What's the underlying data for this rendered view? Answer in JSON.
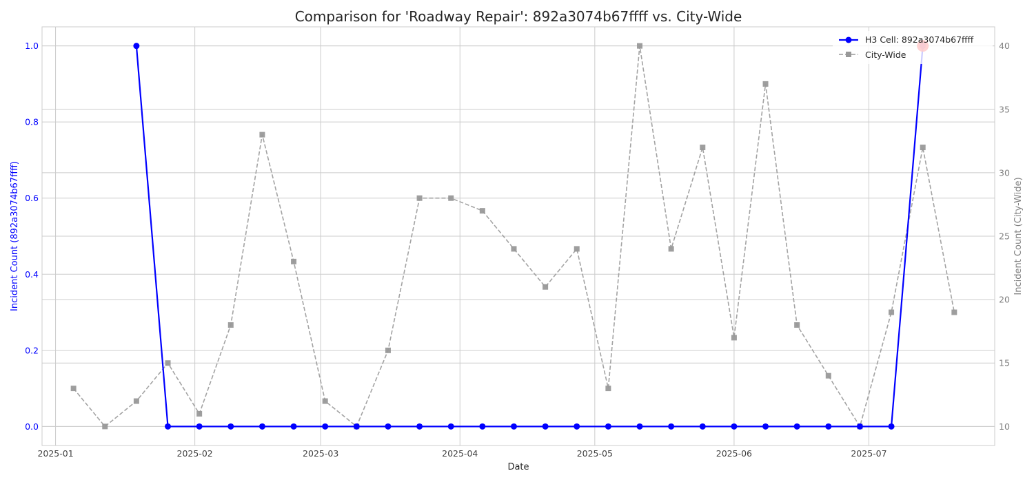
{
  "chart_data": {
    "type": "line",
    "title": "Comparison for 'Roadway Repair': 892a3074b67ffff vs. City-Wide",
    "xlabel": "Date",
    "ylabel_left": "Incident Count (892a3074b67ffff)",
    "ylabel_right": "Incident Count (City-Wide)",
    "grid": true,
    "legend_position": "top-right",
    "x_range": [
      "2024-12-29",
      "2025-07-29"
    ],
    "ylim_left": [
      -0.05,
      1.05
    ],
    "ylim_right": [
      8.5,
      41.5
    ],
    "x_ticks": [
      "2025-01-01",
      "2025-02-01",
      "2025-03-01",
      "2025-04-01",
      "2025-05-01",
      "2025-06-01",
      "2025-07-01"
    ],
    "x_tick_labels": [
      "2025-01",
      "2025-02",
      "2025-03",
      "2025-04",
      "2025-05",
      "2025-06",
      "2025-07"
    ],
    "y_ticks_left": [
      "0.0",
      "0.2",
      "0.4",
      "0.6",
      "0.8",
      "1.0"
    ],
    "y_ticks_right": [
      "10",
      "15",
      "20",
      "25",
      "30",
      "35",
      "40"
    ],
    "series": [
      {
        "name": "H3 Cell: 892a3074b67ffff",
        "axis": "left",
        "color": "#0000ff",
        "style": "solid",
        "marker": "circle",
        "x": [
          "2025-01-19",
          "2025-01-26",
          "2025-02-02",
          "2025-02-09",
          "2025-02-16",
          "2025-02-23",
          "2025-03-02",
          "2025-03-09",
          "2025-03-16",
          "2025-03-23",
          "2025-03-30",
          "2025-04-06",
          "2025-04-13",
          "2025-04-20",
          "2025-04-27",
          "2025-05-04",
          "2025-05-11",
          "2025-05-18",
          "2025-05-25",
          "2025-06-01",
          "2025-06-08",
          "2025-06-15",
          "2025-06-22",
          "2025-06-29",
          "2025-07-06",
          "2025-07-13"
        ],
        "values": [
          1,
          0,
          0,
          0,
          0,
          0,
          0,
          0,
          0,
          0,
          0,
          0,
          0,
          0,
          0,
          0,
          0,
          0,
          0,
          0,
          0,
          0,
          0,
          0,
          0,
          1
        ]
      },
      {
        "name": "City-Wide",
        "axis": "right",
        "color": "#999999",
        "style": "dashed",
        "marker": "square",
        "x": [
          "2025-01-05",
          "2025-01-12",
          "2025-01-19",
          "2025-01-26",
          "2025-02-02",
          "2025-02-09",
          "2025-02-16",
          "2025-02-23",
          "2025-03-02",
          "2025-03-09",
          "2025-03-16",
          "2025-03-23",
          "2025-03-30",
          "2025-04-06",
          "2025-04-13",
          "2025-04-20",
          "2025-04-27",
          "2025-05-04",
          "2025-05-11",
          "2025-05-18",
          "2025-05-25",
          "2025-06-01",
          "2025-06-08",
          "2025-06-15",
          "2025-06-22",
          "2025-06-29",
          "2025-07-06",
          "2025-07-13",
          "2025-07-20"
        ],
        "values": [
          13,
          10,
          12,
          15,
          11,
          18,
          33,
          23,
          12,
          10,
          16,
          28,
          28,
          27,
          24,
          21,
          24,
          13,
          40,
          24,
          32,
          17,
          37,
          18,
          14,
          10,
          19,
          32,
          19
        ]
      }
    ],
    "highlight": {
      "x": "2025-07-13",
      "value": 1,
      "axis": "left",
      "color": "#ff0000"
    }
  }
}
